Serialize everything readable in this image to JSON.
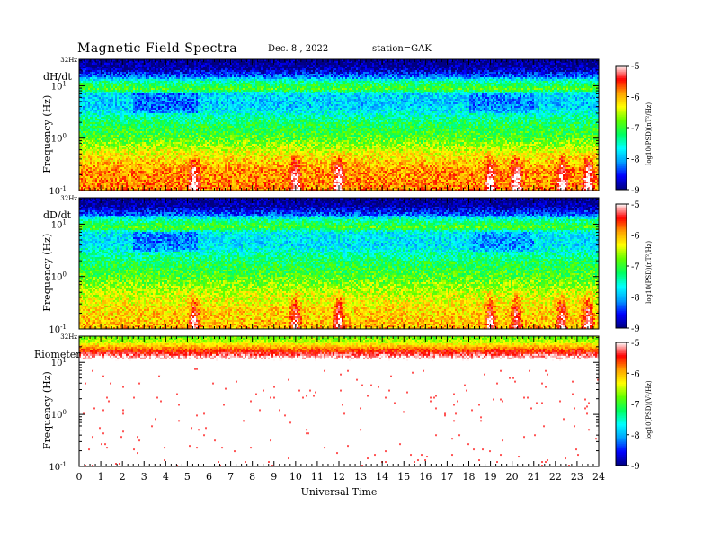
{
  "header": {
    "title": "Magnetic  Field  Spectra",
    "date": "Dec. 8  , 2022",
    "station": "station=GAK"
  },
  "colors": {
    "background": "#ffffff",
    "colormap": [
      "#000080",
      "#0000ff",
      "#00a0ff",
      "#00ffff",
      "#00ff60",
      "#60ff00",
      "#ffff00",
      "#ffa000",
      "#ff0000",
      "#ffffff"
    ]
  },
  "chart_data": [
    {
      "type": "heatmap",
      "panel_label": "dH/dt",
      "top_tick_label": "32Hz",
      "ylabel": "Frequency  (Hz)",
      "yscale": "log",
      "ylim": [
        0.1,
        32
      ],
      "y_ticks": [
        {
          "base": "10",
          "exp": "-1"
        },
        {
          "base": "10",
          "exp": "0"
        },
        {
          "base": "10",
          "exp": "1"
        }
      ],
      "x_ticks": [
        "0",
        "1",
        "2",
        "3",
        "4",
        "5",
        "6",
        "7",
        "8",
        "9",
        "10",
        "11",
        "12",
        "13",
        "14",
        "15",
        "16",
        "17",
        "18",
        "19",
        "20",
        "21",
        "22",
        "23",
        "24"
      ],
      "xlim": [
        0,
        24
      ],
      "colorbar": {
        "label": "log10(PSD)(nT²/Hz)",
        "ticks": [
          "-5",
          "-6",
          "-7",
          "-8",
          "-9"
        ],
        "range": [
          -9,
          -5
        ]
      },
      "profile_log_psd": [
        {
          "freq": 32,
          "value": -9.0
        },
        {
          "freq": 22,
          "value": -8.9
        },
        {
          "freq": 15,
          "value": -8.3
        },
        {
          "freq": 12,
          "value": -7.4
        },
        {
          "freq": 8.5,
          "value": -6.9
        },
        {
          "freq": 7,
          "value": -7.8
        },
        {
          "freq": 4,
          "value": -7.9
        },
        {
          "freq": 2,
          "value": -7.2
        },
        {
          "freq": 1,
          "value": -6.9
        },
        {
          "freq": 0.5,
          "value": -6.3
        },
        {
          "freq": 0.25,
          "value": -5.9
        },
        {
          "freq": 0.1,
          "value": -5.8
        }
      ],
      "events_hours": [
        5.3,
        10.0,
        12.0,
        19.0,
        20.2,
        22.3,
        23.5
      ]
    },
    {
      "type": "heatmap",
      "panel_label": "dD/dt",
      "top_tick_label": "32Hz",
      "ylabel": "Frequency  (Hz)",
      "yscale": "log",
      "ylim": [
        0.1,
        32
      ],
      "y_ticks": [
        {
          "base": "10",
          "exp": "-1"
        },
        {
          "base": "10",
          "exp": "0"
        },
        {
          "base": "10",
          "exp": "1"
        }
      ],
      "x_ticks": [
        "0",
        "1",
        "2",
        "3",
        "4",
        "5",
        "6",
        "7",
        "8",
        "9",
        "10",
        "11",
        "12",
        "13",
        "14",
        "15",
        "16",
        "17",
        "18",
        "19",
        "20",
        "21",
        "22",
        "23",
        "24"
      ],
      "xlim": [
        0,
        24
      ],
      "colorbar": {
        "label": "log10(PSD)(nT²/Hz)",
        "ticks": [
          "-5",
          "-6",
          "-7",
          "-8",
          "-9"
        ],
        "range": [
          -9,
          -5
        ]
      },
      "profile_log_psd": [
        {
          "freq": 32,
          "value": -9.0
        },
        {
          "freq": 22,
          "value": -8.9
        },
        {
          "freq": 15,
          "value": -8.3
        },
        {
          "freq": 12,
          "value": -7.4
        },
        {
          "freq": 8.5,
          "value": -6.9
        },
        {
          "freq": 7,
          "value": -7.7
        },
        {
          "freq": 4,
          "value": -7.8
        },
        {
          "freq": 2,
          "value": -7.2
        },
        {
          "freq": 1,
          "value": -6.9
        },
        {
          "freq": 0.5,
          "value": -6.5
        },
        {
          "freq": 0.25,
          "value": -6.2
        },
        {
          "freq": 0.1,
          "value": -6.0
        }
      ],
      "events_hours": [
        5.3,
        10.0,
        12.0,
        19.0,
        20.2,
        22.3,
        23.5
      ]
    },
    {
      "type": "heatmap",
      "panel_label": "Riometer",
      "top_tick_label": "32Hz",
      "ylabel": "Frequency  (Hz)",
      "yscale": "log",
      "ylim": [
        0.1,
        32
      ],
      "y_ticks": [
        {
          "base": "10",
          "exp": "-1"
        },
        {
          "base": "10",
          "exp": "0"
        },
        {
          "base": "10",
          "exp": "1"
        }
      ],
      "x_ticks": [
        "0",
        "1",
        "2",
        "3",
        "4",
        "5",
        "6",
        "7",
        "8",
        "9",
        "10",
        "11",
        "12",
        "13",
        "14",
        "15",
        "16",
        "17",
        "18",
        "19",
        "20",
        "21",
        "22",
        "23",
        "24"
      ],
      "xlim": [
        0,
        24
      ],
      "xlabel": "Universal  Time",
      "colorbar": {
        "label": "log10(PSD)(V²/Hz)",
        "ticks": [
          "-5",
          "-6",
          "-7",
          "-8",
          "-9"
        ],
        "range": [
          -9,
          -5
        ]
      },
      "profile_log_psd": [
        {
          "freq": 32,
          "value": -6.8
        },
        {
          "freq": 25,
          "value": -6.5
        },
        {
          "freq": 20,
          "value": -6.0
        },
        {
          "freq": 16,
          "value": -5.5
        },
        {
          "freq": 12,
          "value": -5.0
        },
        {
          "freq": 9,
          "value": -4.3
        },
        {
          "freq": 7,
          "value": -3.5
        },
        {
          "freq": 1,
          "value": -3.0
        },
        {
          "freq": 0.1,
          "value": -3.0
        }
      ],
      "events_hours": [
        15.3,
        23.2,
        23.6
      ]
    }
  ]
}
